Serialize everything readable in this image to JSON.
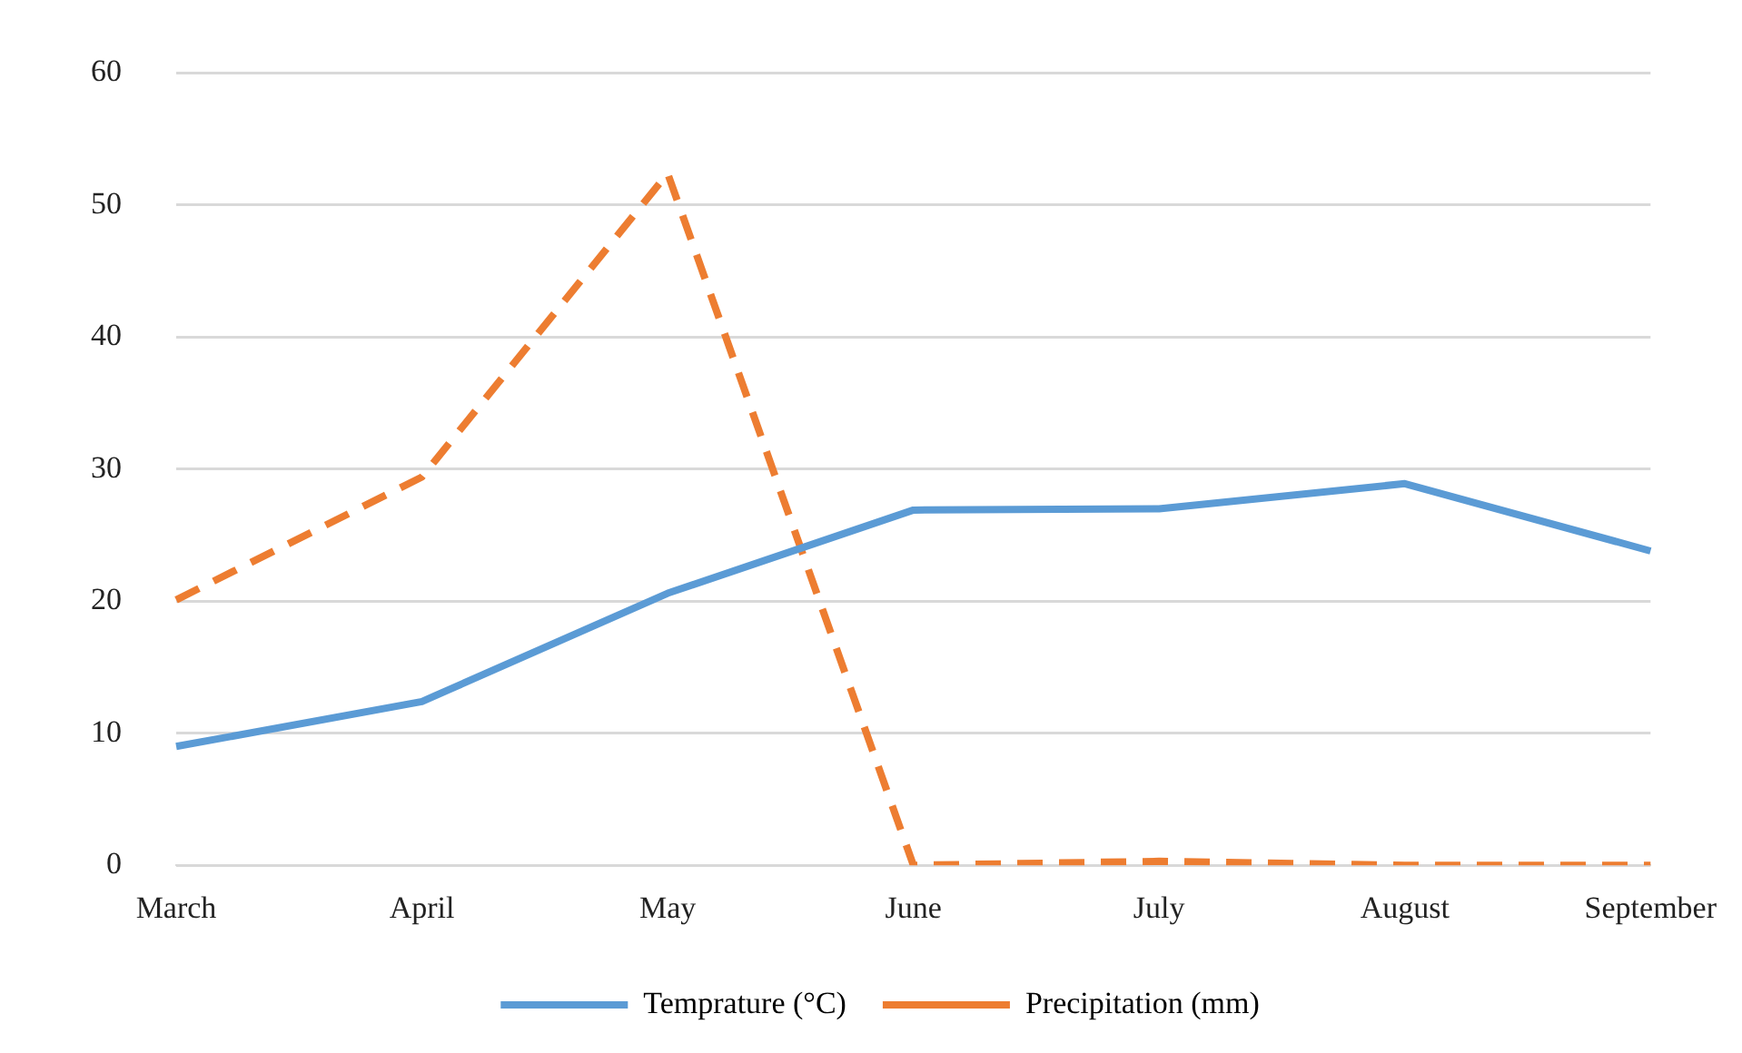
{
  "chart_data": {
    "type": "line",
    "categories": [
      "March",
      "April",
      "May",
      "June",
      "July",
      "August",
      "September"
    ],
    "series": [
      {
        "name": "Temprature (°C)",
        "color": "#5b9bd5",
        "line_style": "solid",
        "values": [
          9,
          12.4,
          20.6,
          26.9,
          27,
          28.9,
          23.8
        ]
      },
      {
        "name": "Precipitation (mm)",
        "color": "#ed7d31",
        "line_style": "dashed",
        "values": [
          20.1,
          29.4,
          52.4,
          0,
          0.3,
          0,
          0
        ]
      }
    ],
    "ylim": [
      0,
      60
    ],
    "yticks": [
      0,
      10,
      20,
      30,
      40,
      50,
      60
    ],
    "grid": "y",
    "legend": "bottom",
    "marker": "none"
  }
}
